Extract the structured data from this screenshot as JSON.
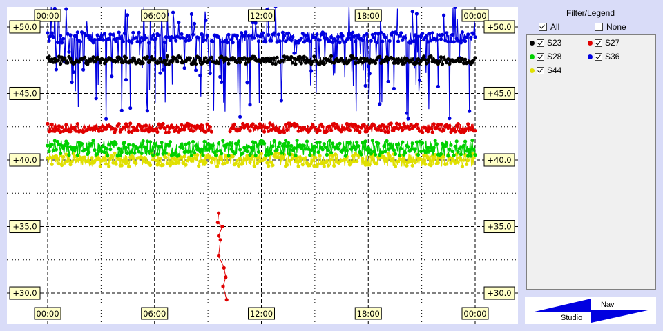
{
  "chart_data": {
    "type": "line",
    "x_ticks": [
      "00:00",
      "06:00",
      "12:00",
      "18:00",
      "00:00"
    ],
    "y_ticks": [
      "+30.0",
      "+35.0",
      "+40.0",
      "+45.0",
      "+50.0"
    ],
    "x_range_hours": [
      0,
      24
    ],
    "ylim": [
      28.5,
      51.5
    ],
    "grid": true,
    "series": [
      {
        "name": "S23",
        "color": "#000000",
        "level": 47.5,
        "spread": 0.3
      },
      {
        "name": "S27",
        "color": "#e00000",
        "level": 42.4,
        "spread": 0.35,
        "gap_hours": [
          9.2,
          10.2
        ],
        "outliers": [
          [
            9.6,
            36.0
          ],
          [
            9.55,
            35.3
          ],
          [
            9.8,
            35.0
          ],
          [
            9.6,
            34.3
          ],
          [
            9.7,
            34.0
          ],
          [
            9.6,
            32.8
          ],
          [
            9.9,
            31.9
          ],
          [
            10.0,
            31.2
          ],
          [
            9.85,
            30.5
          ],
          [
            10.05,
            29.5
          ]
        ]
      },
      {
        "name": "S28",
        "color": "#00d000",
        "level": 40.9,
        "spread": 0.6
      },
      {
        "name": "S36",
        "color": "#0000e0",
        "level": 49.2,
        "spread": 0.4,
        "spike_low": 43.0
      },
      {
        "name": "S44",
        "color": "#e0e000",
        "level": 40.0,
        "spread": 0.5
      }
    ]
  },
  "legend": {
    "title": "Filter/Legend",
    "all_label": "All",
    "none_label": "None",
    "entries": [
      {
        "label": "S23",
        "color": "#000000"
      },
      {
        "label": "S27",
        "color": "#e00000"
      },
      {
        "label": "S28",
        "color": "#00d000"
      },
      {
        "label": "S36",
        "color": "#0000e0"
      },
      {
        "label": "S44",
        "color": "#e0e000"
      }
    ]
  },
  "nav": {
    "top_label": "Nav",
    "bottom_label": "Studio"
  }
}
